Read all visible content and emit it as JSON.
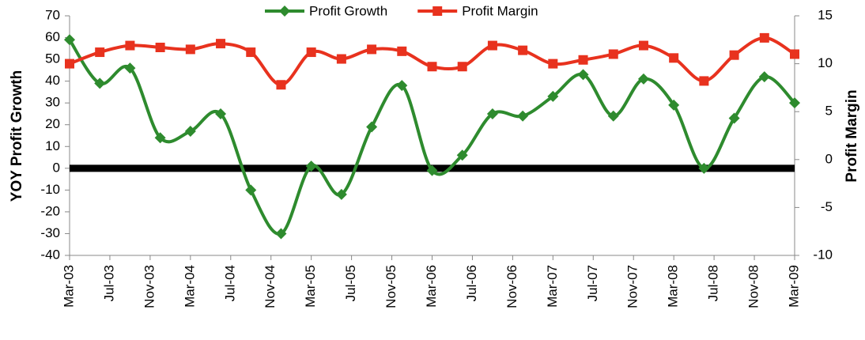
{
  "chart_data": {
    "type": "line",
    "categories": [
      "Mar-03",
      null,
      null,
      null,
      "Jul-03",
      null,
      null,
      null,
      "Nov-03",
      null,
      null,
      null,
      "Mar-04",
      null,
      null,
      null,
      "Jul-04",
      null,
      null,
      null,
      "Nov-04",
      null,
      null,
      null,
      "Mar-05",
      null,
      null,
      null,
      "Jul-05",
      null,
      null,
      null,
      "Nov-05",
      null,
      null,
      null,
      "Mar-06",
      null,
      null,
      null,
      "Jul-06",
      null,
      null,
      null,
      "Nov-06",
      null,
      null,
      null,
      "Mar-07",
      null,
      null,
      null,
      "Jul-07",
      null,
      null,
      null,
      "Nov-07",
      null,
      null,
      null,
      "Mar-08",
      null,
      null,
      null,
      "Jul-08",
      null,
      null,
      null,
      "Nov-08",
      null,
      null,
      null,
      "Mar-09"
    ],
    "series": [
      {
        "name": "Profit Growth",
        "color": "#2e8b2e",
        "marker": "diamond",
        "values": [
          59,
          null,
          null,
          39,
          null,
          null,
          46,
          null,
          null,
          14,
          null,
          null,
          17,
          null,
          null,
          25,
          null,
          null,
          -10,
          null,
          null,
          -30,
          null,
          null,
          1,
          null,
          null,
          -12,
          null,
          null,
          19,
          null,
          null,
          38,
          null,
          null,
          -1,
          null,
          null,
          6,
          null,
          null,
          25,
          null,
          null,
          24,
          null,
          null,
          33,
          null,
          null,
          43,
          null,
          null,
          24,
          null,
          null,
          41,
          null,
          null,
          29,
          null,
          null,
          0,
          null,
          null,
          23,
          null,
          null,
          42,
          null,
          null,
          30
        ]
      },
      {
        "name": "Profit Margin",
        "color": "#e8321e",
        "marker": "square",
        "axis": "y2",
        "values": [
          10.0,
          null,
          null,
          11.2,
          null,
          null,
          11.9,
          null,
          null,
          11.7,
          null,
          null,
          11.5,
          null,
          null,
          12.1,
          null,
          null,
          11.2,
          null,
          null,
          7.8,
          null,
          null,
          11.2,
          null,
          null,
          10.5,
          null,
          null,
          11.5,
          null,
          null,
          11.3,
          null,
          null,
          9.7,
          null,
          null,
          9.7,
          null,
          null,
          11.9,
          null,
          null,
          11.4,
          null,
          null,
          10.0,
          null,
          null,
          10.4,
          null,
          null,
          11.0,
          null,
          null,
          11.9,
          null,
          null,
          10.6,
          null,
          null,
          8.2,
          null,
          null,
          10.9,
          null,
          null,
          12.7,
          null,
          null,
          11.0
        ]
      }
    ],
    "y_label": "YOY Profit Growth",
    "y2_label": "Profit Margin",
    "ylim": [
      -40,
      70
    ],
    "yticks": [
      -40,
      -30,
      -20,
      -10,
      0,
      10,
      20,
      30,
      40,
      50,
      60,
      70
    ],
    "y2lim": [
      -10,
      15
    ],
    "y2ticks": [
      -10,
      -5,
      0,
      5,
      10,
      15
    ],
    "zero_line": true,
    "legend": "top"
  }
}
